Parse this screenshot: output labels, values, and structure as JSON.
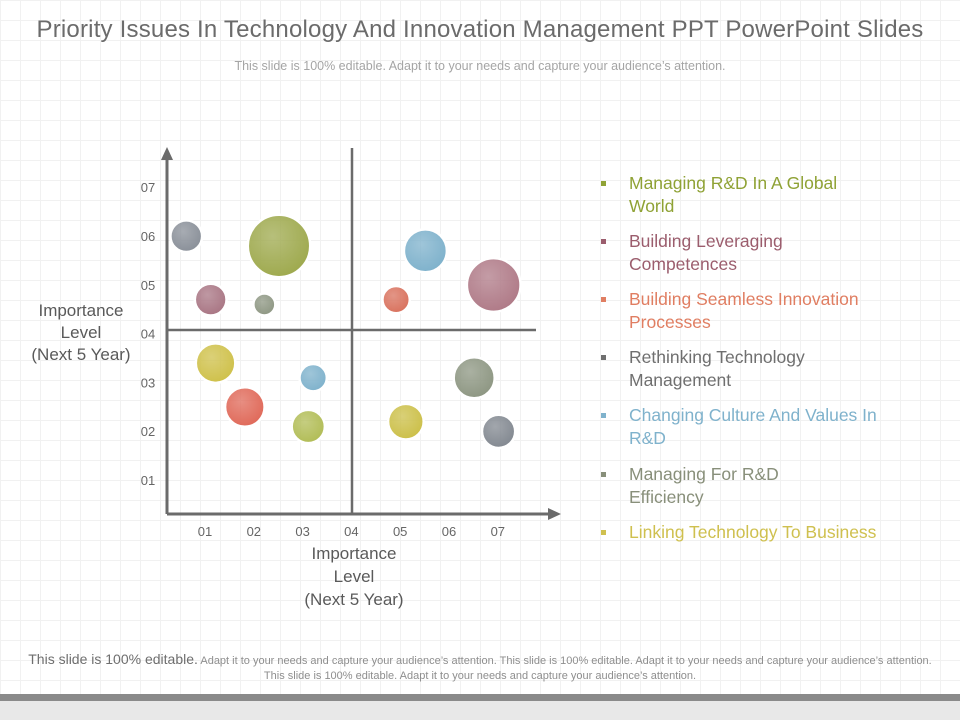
{
  "title": "Priority Issues In Technology And Innovation Management PPT PowerPoint Slides",
  "subtitle": "This slide is 100% editable. Adapt it to your needs and capture your audience’s attention.",
  "chart_data": {
    "type": "scatter",
    "xlabel": "Importance Level (Next 5 Year)",
    "ylabel": "Importance Level (Next 5 Year)",
    "xlabel_lines": [
      "Importance",
      "Level",
      "(Next 5 Year)"
    ],
    "ylabel_lines": [
      "Importance",
      "Level",
      "(Next 5 Year)"
    ],
    "x_ticks": [
      "01",
      "02",
      "03",
      "04",
      "05",
      "06",
      "07"
    ],
    "y_ticks": [
      "01",
      "02",
      "03",
      "04",
      "05",
      "06",
      "07"
    ],
    "xlim": [
      0,
      8
    ],
    "ylim": [
      0,
      8
    ],
    "quadrant_divider": {
      "x": 4,
      "y": 4
    },
    "points": [
      {
        "x": 0.6,
        "y": 6.0,
        "size": 0.65,
        "color": "#8a9099"
      },
      {
        "x": 2.5,
        "y": 5.8,
        "size": 1.28,
        "color": "#9faa4f"
      },
      {
        "x": 1.1,
        "y": 4.7,
        "size": 0.65,
        "color": "#a97684"
      },
      {
        "x": 2.2,
        "y": 4.6,
        "size": 0.45,
        "color": "#8e9783"
      },
      {
        "x": 5.5,
        "y": 5.7,
        "size": 0.88,
        "color": "#7fb2cc"
      },
      {
        "x": 4.9,
        "y": 4.7,
        "size": 0.56,
        "color": "#d9725e"
      },
      {
        "x": 6.9,
        "y": 5.0,
        "size": 1.1,
        "color": "#b07b88"
      },
      {
        "x": 1.2,
        "y": 3.4,
        "size": 0.81,
        "color": "#cfc14b"
      },
      {
        "x": 3.2,
        "y": 3.1,
        "size": 0.56,
        "color": "#7fb2cc"
      },
      {
        "x": 1.8,
        "y": 2.5,
        "size": 0.81,
        "color": "#e06a5a"
      },
      {
        "x": 3.1,
        "y": 2.1,
        "size": 0.68,
        "color": "#b2bd57"
      },
      {
        "x": 5.1,
        "y": 2.2,
        "size": 0.73,
        "color": "#ccc04a"
      },
      {
        "x": 6.5,
        "y": 3.1,
        "size": 0.84,
        "color": "#8e9783"
      },
      {
        "x": 7.0,
        "y": 2.0,
        "size": 0.68,
        "color": "#838991"
      }
    ],
    "legend": [
      {
        "label": "Managing R&D In A Global World",
        "color": "#8fa235",
        "lines": [
          "Managing R&D In A Global",
          "World"
        ]
      },
      {
        "label": "Building Leveraging Competences",
        "color": "#9b5d6d",
        "lines": [
          "Building Leveraging",
          "Competences"
        ]
      },
      {
        "label": "Building Seamless Innovation Processes",
        "color": "#e07e62",
        "lines": [
          "Building Seamless Innovation",
          "Processes"
        ]
      },
      {
        "label": "Rethinking Technology Management",
        "color": "#6f6f6f",
        "lines": [
          "Rethinking Technology",
          "Management"
        ]
      },
      {
        "label": "Changing Culture And Values In R&D",
        "color": "#7fb2cc",
        "lines": [
          "Changing Culture And Values In",
          "R&D"
        ]
      },
      {
        "label": "Managing For R&D Efficiency",
        "color": "#888f7a",
        "lines": [
          "Managing For R&D",
          "Efficiency"
        ]
      },
      {
        "label": "Linking Technology To Business",
        "color": "#cfc04f",
        "lines": [
          "Linking Technology To Business"
        ]
      }
    ]
  },
  "footer": {
    "lead": "This slide is 100% editable.",
    "rest": "Adapt it to your needs and capture your audience’s attention. This slide is 100% editable. Adapt it to your needs and capture your audience’s attention. This slide is 100% editable. Adapt it to your needs and capture your audience’s attention."
  }
}
